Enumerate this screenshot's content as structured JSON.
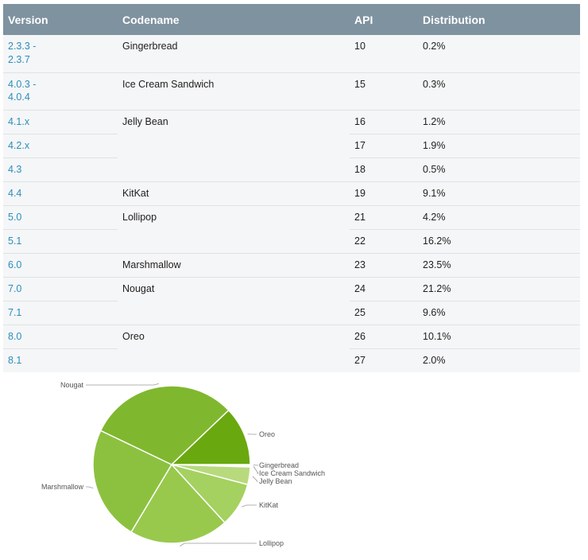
{
  "table": {
    "headers": {
      "version": "Version",
      "codename": "Codename",
      "api": "API",
      "distribution": "Distribution"
    },
    "groups": [
      {
        "codename": "Gingerbread",
        "rows": [
          {
            "version": "2.3.3 -\n2.3.7",
            "api": "10",
            "distribution": "0.2%"
          }
        ]
      },
      {
        "codename": "Ice Cream Sandwich",
        "rows": [
          {
            "version": "4.0.3 -\n4.0.4",
            "api": "15",
            "distribution": "0.3%"
          }
        ]
      },
      {
        "codename": "Jelly Bean",
        "rows": [
          {
            "version": "4.1.x",
            "api": "16",
            "distribution": "1.2%"
          },
          {
            "version": "4.2.x",
            "api": "17",
            "distribution": "1.9%"
          },
          {
            "version": "4.3",
            "api": "18",
            "distribution": "0.5%"
          }
        ]
      },
      {
        "codename": "KitKat",
        "rows": [
          {
            "version": "4.4",
            "api": "19",
            "distribution": "9.1%"
          }
        ]
      },
      {
        "codename": "Lollipop",
        "rows": [
          {
            "version": "5.0",
            "api": "21",
            "distribution": "4.2%"
          },
          {
            "version": "5.1",
            "api": "22",
            "distribution": "16.2%"
          }
        ]
      },
      {
        "codename": "Marshmallow",
        "rows": [
          {
            "version": "6.0",
            "api": "23",
            "distribution": "23.5%"
          }
        ]
      },
      {
        "codename": "Nougat",
        "rows": [
          {
            "version": "7.0",
            "api": "24",
            "distribution": "21.2%"
          },
          {
            "version": "7.1",
            "api": "25",
            "distribution": "9.6%"
          }
        ]
      },
      {
        "codename": "Oreo",
        "rows": [
          {
            "version": "8.0",
            "api": "26",
            "distribution": "10.1%"
          },
          {
            "version": "8.1",
            "api": "27",
            "distribution": "2.0%"
          }
        ]
      }
    ]
  },
  "chart_data": {
    "type": "pie",
    "title": "",
    "categories": [
      "Gingerbread",
      "Ice Cream Sandwich",
      "Jelly Bean",
      "KitKat",
      "Lollipop",
      "Marshmallow",
      "Nougat",
      "Oreo"
    ],
    "values": [
      0.2,
      0.3,
      3.6,
      9.1,
      20.4,
      23.5,
      30.8,
      12.1
    ],
    "colors": [
      "#f3f8e9",
      "#d6e9b0",
      "#b8da7d",
      "#a4d15f",
      "#98c94d",
      "#8cc140",
      "#7fb82e",
      "#6aa80f"
    ],
    "legend": "leader-line labels around the pie"
  },
  "colors": {
    "header_bg": "#7f929f",
    "version_link": "#2b8ebd",
    "table_bg": "#f5f6f7"
  }
}
